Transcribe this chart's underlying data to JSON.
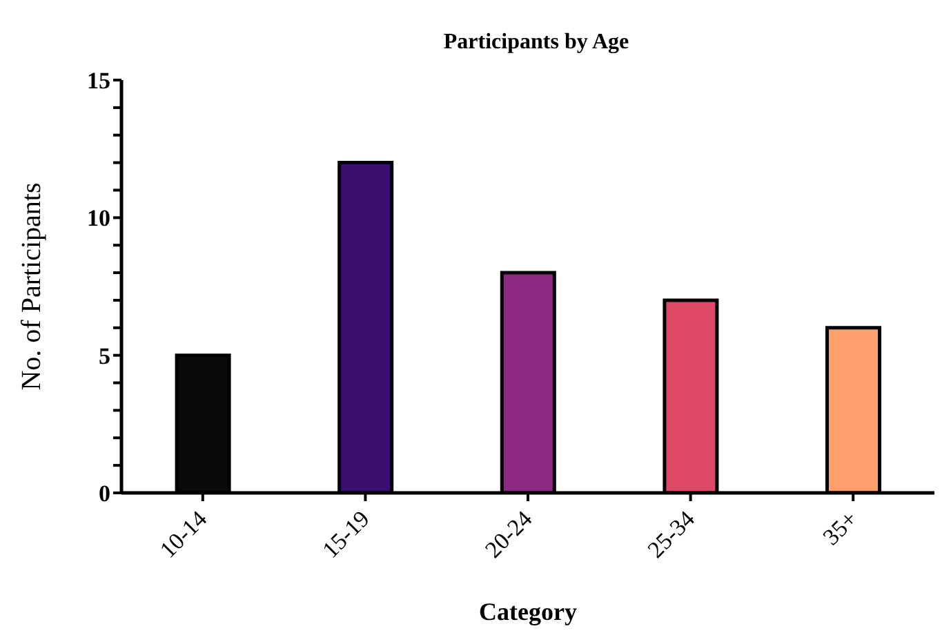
{
  "chart_data": {
    "type": "bar",
    "title": "Participants by Age",
    "xlabel": "Category",
    "ylabel": "No. of Participants",
    "categories": [
      "10-14",
      "15-19",
      "20-24",
      "25-34",
      "35+"
    ],
    "values": [
      5,
      12,
      8,
      7,
      6
    ],
    "colors": [
      "#0a0a0a",
      "#3b0f70",
      "#8c2981",
      "#de4968",
      "#fe9f6d"
    ],
    "ylim": [
      0,
      15
    ],
    "yticks": [
      0,
      {
        "value": 1,
        "label": null
      },
      {
        "value": 2,
        "label": null
      },
      {
        "value": 3,
        "label": null
      },
      {
        "value": 4,
        "label": null
      },
      5,
      {
        "value": 6,
        "label": null
      },
      {
        "value": 7,
        "label": null
      },
      {
        "value": 8,
        "label": null
      },
      {
        "value": 9,
        "label": null
      },
      10,
      {
        "value": 11,
        "label": null
      },
      {
        "value": 12,
        "label": null
      },
      {
        "value": 13,
        "label": null
      },
      {
        "value": 14,
        "label": null
      },
      15
    ],
    "grid": false,
    "legend": false
  }
}
